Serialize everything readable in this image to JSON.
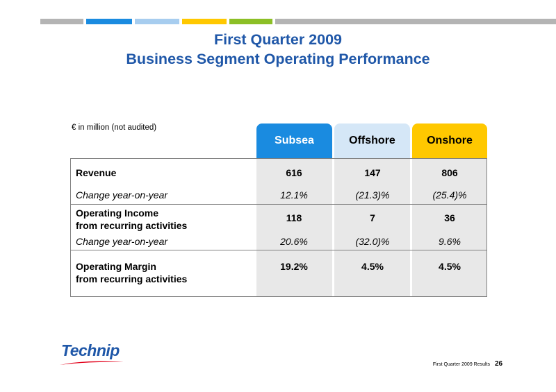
{
  "colors": {
    "subsea": "#1a8be0",
    "offshore": "#d5e7f7",
    "onshore": "#ffc800",
    "strip_dark_blue": "#1a8be0",
    "strip_light_blue": "#a7cdef",
    "strip_yellow": "#ffc800",
    "strip_green": "#8cbf26",
    "title": "#1f57a8",
    "column_shade": "#e8e8e8"
  },
  "title": {
    "line1": "First Quarter 2009",
    "line2": "Business Segment Operating Performance"
  },
  "unit_note": "€ in million (not audited)",
  "columns": {
    "subsea": "Subsea",
    "offshore": "Offshore",
    "onshore": "Onshore"
  },
  "rows": {
    "revenue": {
      "label": "Revenue",
      "subsea": "616",
      "offshore": "147",
      "onshore": "806"
    },
    "revenue_change": {
      "label": "Change year-on-year",
      "subsea": "12.1%",
      "offshore": "(21.3)%",
      "onshore": "(25.4)%"
    },
    "op_income": {
      "label_line1": "Operating Income",
      "label_line2": "from recurring activities",
      "subsea": "118",
      "offshore": "7",
      "onshore": "36"
    },
    "op_income_change": {
      "label": "Change year-on-year",
      "subsea": "20.6%",
      "offshore": "(32.0)%",
      "onshore": "9.6%"
    },
    "op_margin": {
      "label_line1": "Operating Margin",
      "label_line2": "from recurring activities",
      "subsea": "19.2%",
      "offshore": "4.5%",
      "onshore": "4.5%"
    }
  },
  "logo_text": "Technip",
  "footer": {
    "caption": "First Quarter 2009 Results",
    "page": "26"
  }
}
